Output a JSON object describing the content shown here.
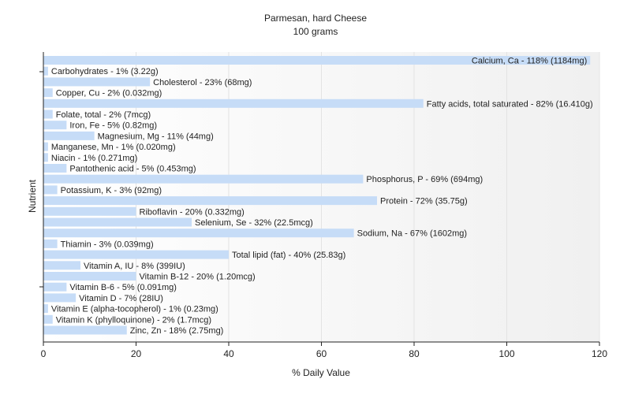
{
  "chart_data": {
    "type": "bar",
    "orientation": "horizontal",
    "title": "Parmesan, hard Cheese",
    "subtitle": "100 grams",
    "xlabel": "% Daily Value",
    "ylabel": "Nutrient",
    "xlim": [
      0,
      120
    ],
    "xticks": [
      "0",
      "20",
      "40",
      "60",
      "80",
      "100",
      "120"
    ],
    "grid": true,
    "bar_color": "#c6dcf7",
    "categories": [
      "Calcium, Ca",
      "Carbohydrates",
      "Cholesterol",
      "Copper, Cu",
      "Fatty acids, total saturated",
      "Folate, total",
      "Iron, Fe",
      "Magnesium, Mg",
      "Manganese, Mn",
      "Niacin",
      "Pantothenic acid",
      "Phosphorus, P",
      "Potassium, K",
      "Protein",
      "Riboflavin",
      "Selenium, Se",
      "Sodium, Na",
      "Thiamin",
      "Total lipid (fat)",
      "Vitamin A, IU",
      "Vitamin B-12",
      "Vitamin B-6",
      "Vitamin D",
      "Vitamin E (alpha-tocopherol)",
      "Vitamin K (phylloquinone)",
      "Zinc, Zn"
    ],
    "values": [
      118,
      1,
      23,
      2,
      82,
      2,
      5,
      11,
      1,
      1,
      5,
      69,
      3,
      72,
      20,
      32,
      67,
      3,
      40,
      8,
      20,
      5,
      7,
      1,
      2,
      18
    ],
    "labels": [
      "Calcium, Ca - 118% (1184mg)",
      "Carbohydrates - 1% (3.22g)",
      "Cholesterol - 23% (68mg)",
      "Copper, Cu - 2% (0.032mg)",
      "Fatty acids, total saturated - 82% (16.410g)",
      "Folate, total - 2% (7mcg)",
      "Iron, Fe - 5% (0.82mg)",
      "Magnesium, Mg - 11% (44mg)",
      "Manganese, Mn - 1% (0.020mg)",
      "Niacin - 1% (0.271mg)",
      "Pantothenic acid - 5% (0.453mg)",
      "Phosphorus, P - 69% (694mg)",
      "Potassium, K - 3% (92mg)",
      "Protein - 72% (35.75g)",
      "Riboflavin - 20% (0.332mg)",
      "Selenium, Se - 32% (22.5mcg)",
      "Sodium, Na - 67% (1602mg)",
      "Thiamin - 3% (0.039mg)",
      "Total lipid (fat) - 40% (25.83g)",
      "Vitamin A, IU - 8% (399IU)",
      "Vitamin B-12 - 20% (1.20mcg)",
      "Vitamin B-6 - 5% (0.091mg)",
      "Vitamin D - 7% (28IU)",
      "Vitamin E (alpha-tocopherol) - 1% (0.23mg)",
      "Vitamin K (phylloquinone) - 2% (1.7mcg)",
      "Zinc, Zn - 18% (2.75mg)"
    ]
  }
}
